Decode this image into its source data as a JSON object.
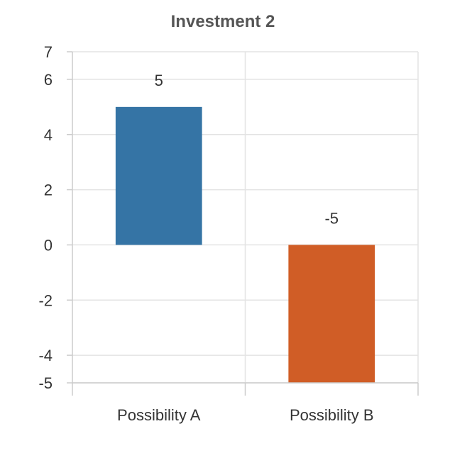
{
  "chart_data": {
    "type": "bar",
    "title": "Investment 2",
    "xlabel": "",
    "ylabel": "",
    "categories": [
      "Possibility A",
      "Possibility B"
    ],
    "values": [
      5,
      -5
    ],
    "data_labels": [
      "5",
      "-5"
    ],
    "colors": [
      "#3574a5",
      "#d05d26"
    ],
    "ylim": [
      -5,
      7
    ],
    "yticks": [
      -5,
      -4,
      -2,
      0,
      2,
      4,
      6,
      7
    ],
    "ytick_labels": [
      "-5",
      "-4",
      "-2",
      "0",
      "2",
      "4",
      "6",
      "7"
    ],
    "grid": true,
    "legend": "none"
  }
}
